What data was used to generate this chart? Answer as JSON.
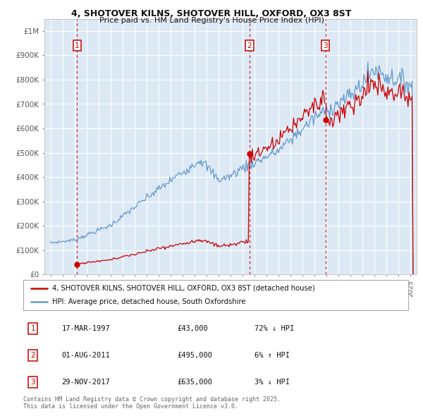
{
  "title": "4, SHOTOVER KILNS, SHOTOVER HILL, OXFORD, OX3 8ST",
  "subtitle": "Price paid vs. HM Land Registry's House Price Index (HPI)",
  "hpi_label": "HPI: Average price, detached house, South Oxfordshire",
  "property_label": "4, SHOTOVER KILNS, SHOTOVER HILL, OXFORD, OX3 8ST (detached house)",
  "transactions": [
    {
      "num": 1,
      "date": "17-MAR-1997",
      "price": 43000,
      "pct": "72%",
      "dir": "↓",
      "x": 1997.21
    },
    {
      "num": 2,
      "date": "01-AUG-2011",
      "price": 495000,
      "pct": "6%",
      "dir": "↑",
      "x": 2011.58
    },
    {
      "num": 3,
      "date": "29-NOV-2017",
      "price": 635000,
      "pct": "3%",
      "dir": "↓",
      "x": 2017.91
    }
  ],
  "property_color": "#cc0000",
  "hpi_color": "#6699cc",
  "background_color": "#dce9f5",
  "plot_bg": "#dce9f5",
  "grid_color": "#ffffff",
  "footer": "Contains HM Land Registry data © Crown copyright and database right 2025.\nThis data is licensed under the Open Government Licence v3.0.",
  "ylim": [
    0,
    1050000
  ],
  "yticks": [
    0,
    100000,
    200000,
    300000,
    400000,
    500000,
    600000,
    700000,
    800000,
    900000,
    1000000
  ],
  "ytick_labels": [
    "£0",
    "£100K",
    "£200K",
    "£300K",
    "£400K",
    "£500K",
    "£600K",
    "£700K",
    "£800K",
    "£900K",
    "£1M"
  ],
  "xlim": [
    1994.5,
    2025.5
  ]
}
